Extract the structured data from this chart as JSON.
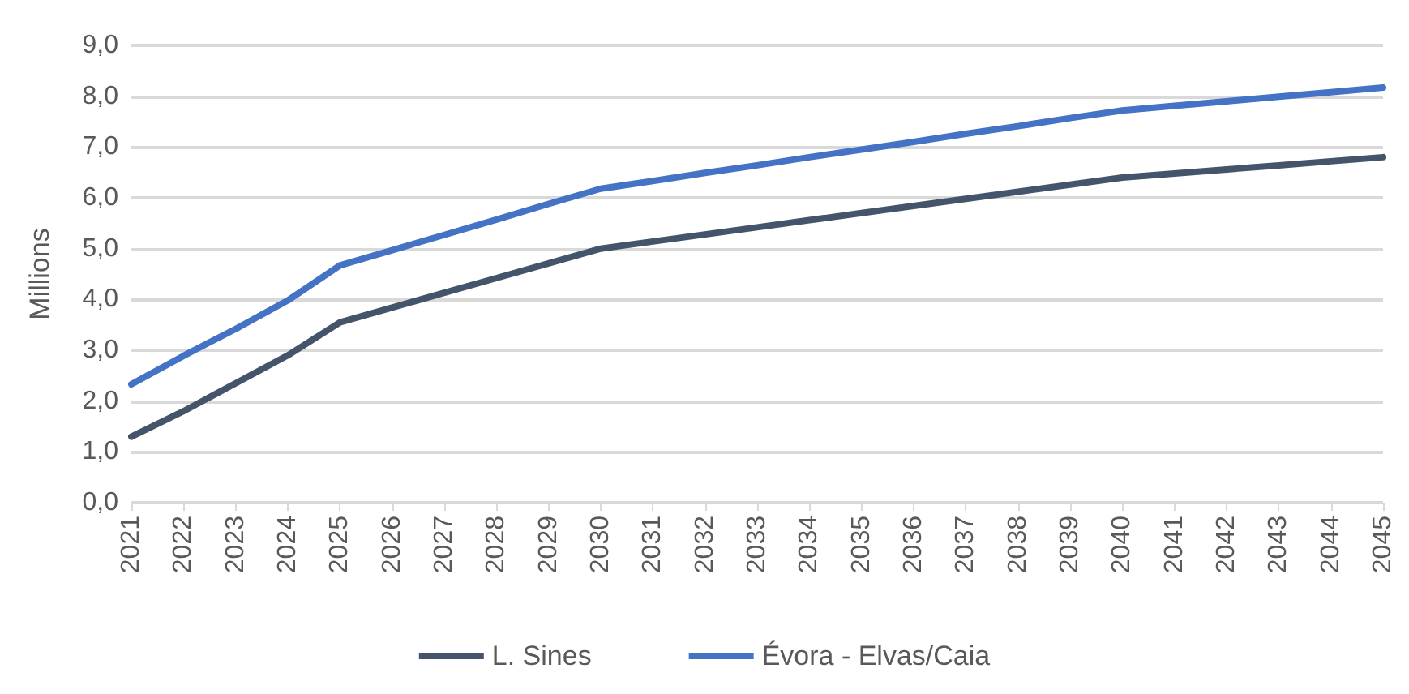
{
  "chart_data": {
    "type": "line",
    "ylabel": "Millions",
    "categories": [
      "2021",
      "2022",
      "2023",
      "2024",
      "2025",
      "2026",
      "2027",
      "2028",
      "2029",
      "2030",
      "2031",
      "2032",
      "2033",
      "2034",
      "2035",
      "2036",
      "2037",
      "2038",
      "2039",
      "2040",
      "2041",
      "2042",
      "2043",
      "2044",
      "2045"
    ],
    "series": [
      {
        "name": "L. Sines",
        "color": "#44546a",
        "values": [
          1.3,
          1.8,
          2.35,
          2.9,
          3.55,
          3.84,
          4.13,
          4.42,
          4.71,
          5.0,
          5.14,
          5.28,
          5.42,
          5.56,
          5.7,
          5.84,
          5.98,
          6.12,
          6.26,
          6.4,
          6.48,
          6.56,
          6.64,
          6.72,
          6.8
        ]
      },
      {
        "name": "Évora - Elvas/Caia",
        "color": "#4472c4",
        "values": [
          2.33,
          2.89,
          3.42,
          3.98,
          4.67,
          4.97,
          5.27,
          5.57,
          5.88,
          6.18,
          6.33,
          6.49,
          6.64,
          6.8,
          6.95,
          7.1,
          7.26,
          7.41,
          7.57,
          7.72,
          7.81,
          7.9,
          7.99,
          8.08,
          8.17
        ]
      }
    ],
    "ylim": [
      0,
      9
    ],
    "yticks": [
      {
        "value": 0,
        "label": "0,0"
      },
      {
        "value": 1,
        "label": "1,0"
      },
      {
        "value": 2,
        "label": "2,0"
      },
      {
        "value": 3,
        "label": "3,0"
      },
      {
        "value": 4,
        "label": "4,0"
      },
      {
        "value": 5,
        "label": "5,0"
      },
      {
        "value": 6,
        "label": "6,0"
      },
      {
        "value": 7,
        "label": "7,0"
      },
      {
        "value": 8,
        "label": "8,0"
      },
      {
        "value": 9,
        "label": "9,0"
      }
    ],
    "grid": "y",
    "legend": "bottom",
    "marker": "none",
    "line_style": "solid"
  }
}
